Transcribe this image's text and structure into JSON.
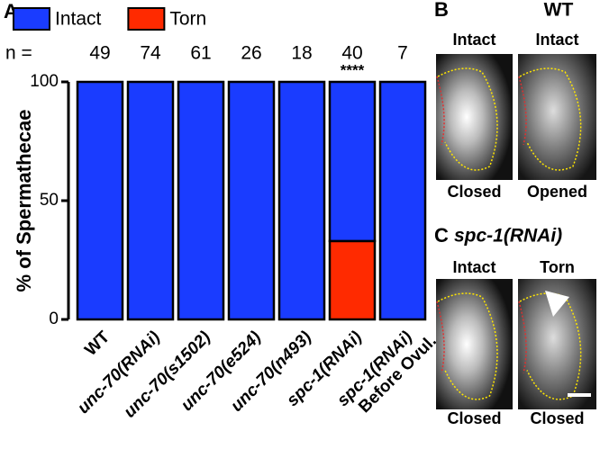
{
  "chart_data": {
    "type": "stacked_bar",
    "panel_letter": "A",
    "categories": [
      "WT",
      "unc-70(RNAi)",
      "unc-70(s1502)",
      "unc-70(e524)",
      "unc-70(n493)",
      "spc-1(RNAi)",
      "spc-1(RNAi) Before Ovul."
    ],
    "series": [
      {
        "name": "Intact",
        "color": "#1a3cff",
        "values": [
          100,
          100,
          100,
          100,
          100,
          67,
          100
        ]
      },
      {
        "name": "Torn",
        "color": "#ff2a00",
        "values": [
          0,
          0,
          0,
          0,
          0,
          33,
          0
        ]
      }
    ],
    "n_label": "n =",
    "n_values": [
      49,
      74,
      61,
      26,
      18,
      40,
      7
    ],
    "significance": {
      "index": 5,
      "label": "****"
    },
    "y_label": "% of Spermathecae",
    "ylim": [
      0,
      100
    ],
    "yticks": [
      0,
      50,
      100
    ],
    "legend": "top"
  },
  "panels": [
    {
      "letter": "B",
      "title": "WT",
      "images": [
        {
          "top": "Intact",
          "bottom": "Closed"
        },
        {
          "top": "Intact",
          "bottom": "Opened"
        }
      ]
    },
    {
      "letter": "C",
      "title": "spc-1(RNAi)",
      "images": [
        {
          "top": "Intact",
          "bottom": "Closed"
        },
        {
          "top": "Torn",
          "bottom": "Closed"
        }
      ]
    }
  ]
}
